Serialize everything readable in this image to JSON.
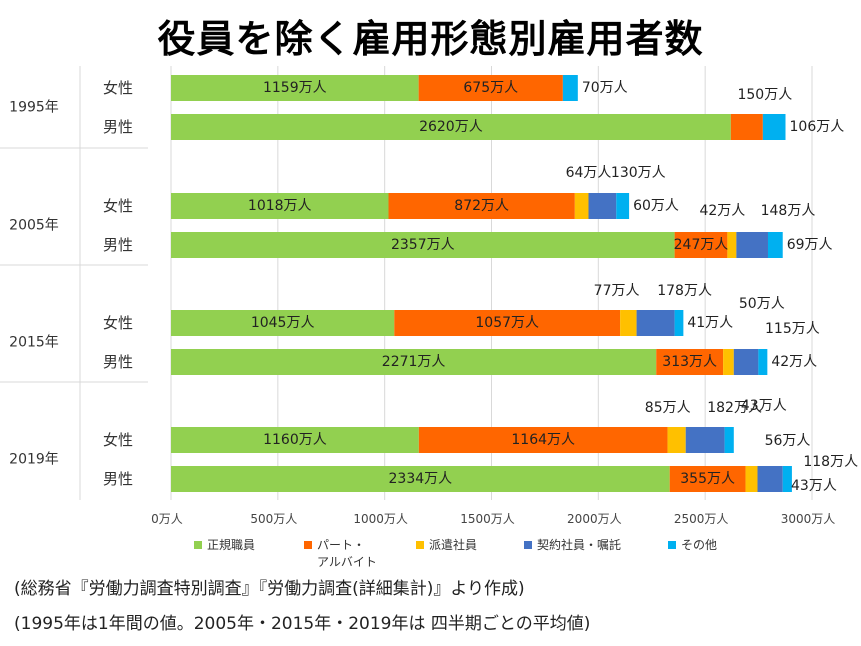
{
  "title": "役員を除く雇用形態別雇用者数",
  "notes": [
    "(総務省『労働力調査特別調査』『労働力調査(詳細集計)』より作成)",
    "(1995年は1年間の値。2005年・2015年・2019年は 四半期ごとの平均値)"
  ],
  "chart_data": {
    "type": "bar",
    "orientation": "horizontal",
    "stacked": true,
    "xlim": [
      0,
      3000
    ],
    "x_ticks": [
      "0万人",
      "500万人",
      "1000万人",
      "1500万人",
      "2000万人",
      "2500万人",
      "3000万人"
    ],
    "grid": true,
    "legend_position": "bottom",
    "groups": [
      {
        "year": "1995年",
        "rows": [
          {
            "label": "女性",
            "values": [
              1159,
              675,
              0,
              0,
              70
            ],
            "value_labels": [
              "1159万人",
              "675万人",
              "",
              "",
              "70万人"
            ]
          },
          {
            "label": "男性",
            "values": [
              2620,
              150,
              0,
              0,
              106
            ],
            "value_labels": [
              "2620万人",
              "150万人",
              "",
              "",
              "106万人"
            ]
          }
        ]
      },
      {
        "year": "2005年",
        "rows": [
          {
            "label": "女性",
            "values": [
              1018,
              872,
              64,
              130,
              60
            ],
            "value_labels": [
              "1018万人",
              "872万人",
              "64万人",
              "130万人",
              "60万人"
            ]
          },
          {
            "label": "男性",
            "values": [
              2357,
              247,
              42,
              148,
              69
            ],
            "value_labels": [
              "2357万人",
              "247万人",
              "42万人",
              "148万人",
              "69万人"
            ]
          }
        ]
      },
      {
        "year": "2015年",
        "rows": [
          {
            "label": "女性",
            "values": [
              1045,
              1057,
              77,
              178,
              41
            ],
            "value_labels": [
              "1045万人",
              "1057万人",
              "77万人",
              "178万人",
              "41万人"
            ]
          },
          {
            "label": "男性",
            "values": [
              2271,
              313,
              50,
              115,
              42
            ],
            "value_labels": [
              "2271万人",
              "313万人",
              "50万人",
              "115万人",
              "42万人"
            ]
          }
        ]
      },
      {
        "year": "2019年",
        "rows": [
          {
            "label": "女性",
            "values": [
              1160,
              1164,
              85,
              182,
              43
            ],
            "value_labels": [
              "1160万人",
              "1164万人",
              "85万人",
              "182万人",
              "43万人"
            ]
          },
          {
            "label": "男性",
            "values": [
              2334,
              355,
              56,
              118,
              43
            ],
            "value_labels": [
              "2334万人",
              "355万人",
              "56万人",
              "118万人",
              "43万人"
            ]
          }
        ]
      }
    ],
    "series": [
      {
        "name": "正規職員",
        "color": "#92d050"
      },
      {
        "name": "パート・アルバイト",
        "color": "#ff6600"
      },
      {
        "name": "派遣社員",
        "color": "#ffc000"
      },
      {
        "name": "契約社員・嘱託",
        "color": "#4472c4"
      },
      {
        "name": "その他",
        "color": "#00b0f0"
      }
    ]
  }
}
